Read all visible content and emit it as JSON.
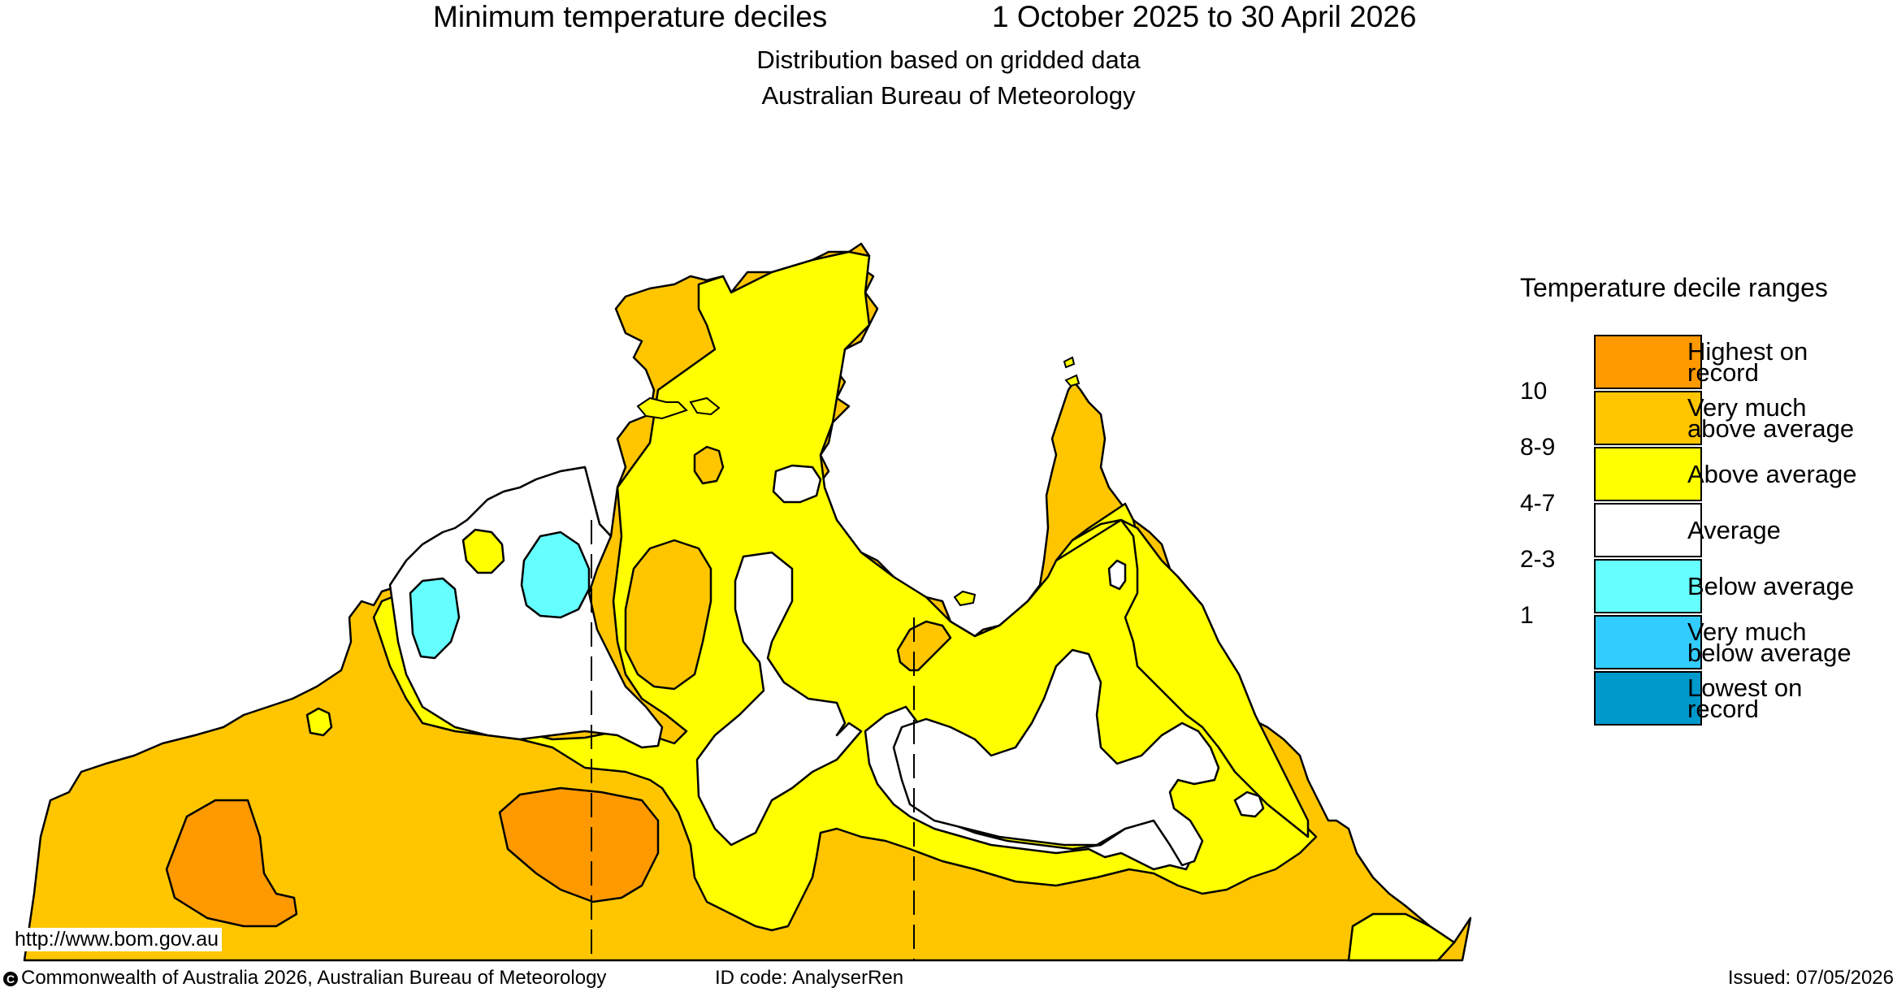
{
  "header": {
    "title": "Minimum temperature deciles",
    "period": "1 October 2025 to 30 April 2026",
    "subtitle_line1": "Distribution based on gridded data",
    "subtitle_line2": "Australian Bureau of Meteorology"
  },
  "legend": {
    "title": "Temperature decile ranges",
    "categories": [
      {
        "label_line1": "Highest on",
        "label_line2": "record",
        "decile": "",
        "color": "#ff9900"
      },
      {
        "label_line1": "Very much",
        "label_line2": "above average",
        "decile": "10",
        "color": "#ffc600"
      },
      {
        "label_line1": "Above average",
        "label_line2": "",
        "decile": "8-9",
        "color": "#ffff00"
      },
      {
        "label_line1": "Average",
        "label_line2": "",
        "decile": "4-7",
        "color": "#ffffff"
      },
      {
        "label_line1": "Below average",
        "label_line2": "",
        "decile": "2-3",
        "color": "#66ffff"
      },
      {
        "label_line1": "Very much",
        "label_line2": "below average",
        "decile": "1",
        "color": "#33ccff"
      },
      {
        "label_line1": "Lowest on",
        "label_line2": "record",
        "decile": "",
        "color": "#0099cc"
      }
    ]
  },
  "map_colors": {
    "very_much_above": "#ffc600",
    "above": "#ffff00",
    "highest": "#ff9900",
    "average": "#ffffff",
    "below": "#66ffff"
  },
  "footer": {
    "url": "http://www.bom.gov.au",
    "copyright": "Commonwealth of Australia 2026, Australian Bureau of Meteorology",
    "id_code": "ID code: AnalyserRen",
    "issued": "Issued: 07/05/2026",
    "copyright_icon": "copyright-icon"
  }
}
